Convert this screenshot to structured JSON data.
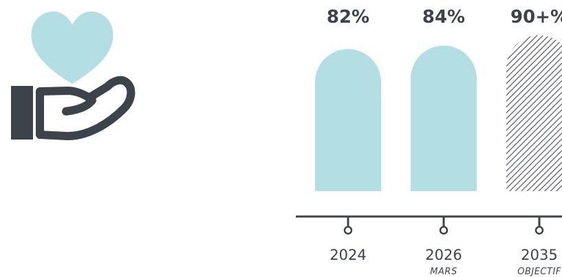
{
  "colors": {
    "bar": "#b2dee4",
    "heart": "#b2dee4",
    "ink": "#3d434b",
    "hatch_bg": "#ffffff",
    "hatch_line": "#454a50"
  },
  "icons": {
    "main": "heart-in-hand-icon"
  },
  "chart_data": {
    "type": "bar",
    "categories": [
      "2024",
      "2026",
      "2035"
    ],
    "sublabels": [
      "",
      "MARS",
      "OBJECTIF"
    ],
    "values": [
      82,
      84,
      90
    ],
    "value_labels": [
      "82%",
      "84%",
      "90+%"
    ],
    "styles": [
      "solid",
      "solid",
      "hatched"
    ],
    "title": "",
    "xlabel": "",
    "ylabel": "",
    "ylim": [
      0,
      100
    ],
    "grid": false,
    "legend": "none"
  }
}
